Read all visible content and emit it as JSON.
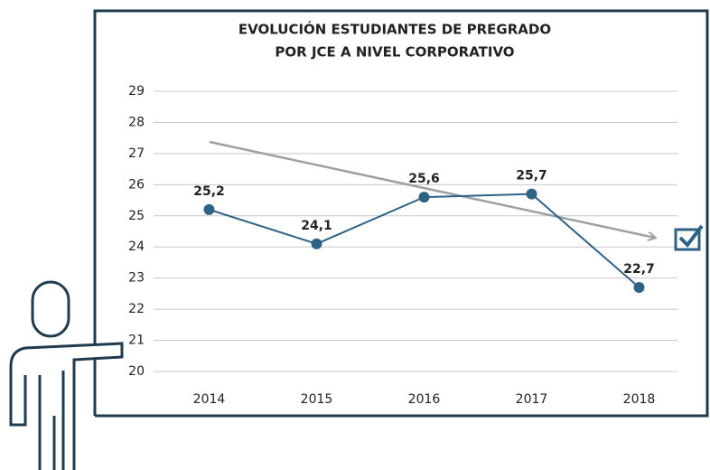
{
  "chart_data": {
    "type": "line",
    "title": [
      "EVOLUCIÓN ESTUDIANTES DE PREGRADO",
      "POR JCE A NIVEL CORPORATIVO"
    ],
    "categories": [
      "2014",
      "2015",
      "2016",
      "2017",
      "2018"
    ],
    "series": [
      {
        "color": "#2e6385",
        "values": [
          25.2,
          24.1,
          25.6,
          25.7,
          22.7
        ],
        "value_labels": [
          "25,2",
          "24,1",
          "25,6",
          "25,7",
          "22,7"
        ]
      }
    ],
    "ylim": [
      20,
      29
    ],
    "yticks": [
      20,
      21,
      22,
      23,
      24,
      25,
      26,
      27,
      28,
      29
    ],
    "grid": true
  }
}
